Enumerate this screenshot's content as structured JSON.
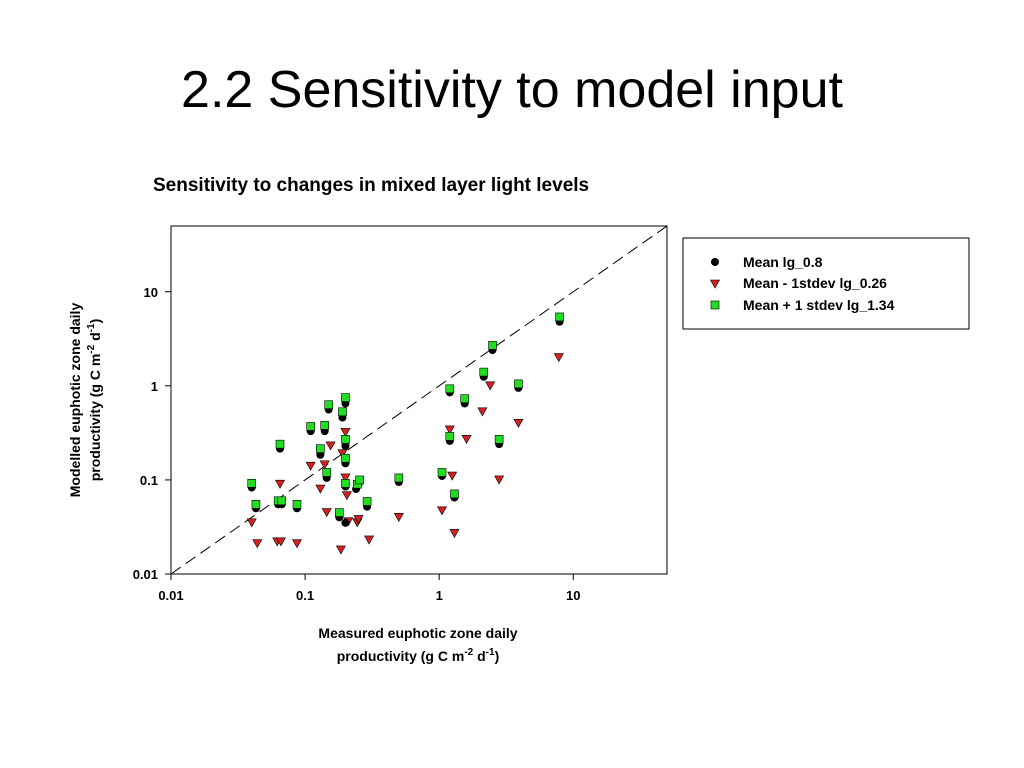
{
  "slide": {
    "title": "2.2 Sensitivity to model input"
  },
  "colors": {
    "series_mean": "#000000",
    "series_minus": "#d62020",
    "series_plus": "#22dd22",
    "axis": "#000000"
  },
  "chart_data": {
    "type": "scatter",
    "title": "Sensitivity to changes in mixed layer light levels",
    "xlabel": {
      "line1": "Measured euphotic zone daily",
      "line2_prefix": "productivity (g C m",
      "sup1": "-2",
      "mid": " d",
      "sup2": "-1",
      "suffix": ")"
    },
    "ylabel": {
      "line1": "Modelled euphotic zone daily",
      "line2_prefix": "productivity (g C m",
      "sup1": "-2",
      "mid": " d",
      "sup2": "-1",
      "suffix": ")"
    },
    "xscale": "log",
    "yscale": "log",
    "xlim": [
      0.01,
      50
    ],
    "ylim": [
      0.01,
      50
    ],
    "xticks": [
      0.01,
      0.1,
      1,
      10
    ],
    "xtick_labels": [
      "0.01",
      "0.1",
      "1",
      "10"
    ],
    "yticks": [
      0.01,
      0.1,
      1,
      10
    ],
    "ytick_labels": [
      "0.01",
      "0.1",
      "1",
      "10"
    ],
    "reference_line": "1:1 dashed",
    "legend_position": "outside-right",
    "series": [
      {
        "name": "Mean lg_0.8",
        "marker": "circle",
        "points": [
          [
            0.04,
            0.083
          ],
          [
            0.043,
            0.05
          ],
          [
            0.063,
            0.055
          ],
          [
            0.067,
            0.055
          ],
          [
            0.065,
            0.215
          ],
          [
            0.087,
            0.05
          ],
          [
            0.11,
            0.33
          ],
          [
            0.13,
            0.185
          ],
          [
            0.14,
            0.33
          ],
          [
            0.145,
            0.105
          ],
          [
            0.15,
            0.56
          ],
          [
            0.18,
            0.04
          ],
          [
            0.19,
            0.46
          ],
          [
            0.2,
            0.23
          ],
          [
            0.2,
            0.65
          ],
          [
            0.2,
            0.15
          ],
          [
            0.2,
            0.085
          ],
          [
            0.2,
            0.035
          ],
          [
            0.24,
            0.08
          ],
          [
            0.25,
            0.09
          ],
          [
            0.29,
            0.052
          ],
          [
            0.5,
            0.095
          ],
          [
            1.05,
            0.11
          ],
          [
            1.2,
            0.85
          ],
          [
            1.2,
            0.26
          ],
          [
            1.3,
            0.065
          ],
          [
            1.55,
            0.65
          ],
          [
            2.15,
            1.25
          ],
          [
            2.5,
            2.4
          ],
          [
            2.8,
            0.24
          ],
          [
            3.9,
            0.95
          ],
          [
            7.9,
            4.8
          ]
        ]
      },
      {
        "name": "Mean - 1stdev lg_0.26",
        "marker": "triangle-down",
        "points": [
          [
            0.04,
            0.035
          ],
          [
            0.044,
            0.021
          ],
          [
            0.062,
            0.022
          ],
          [
            0.066,
            0.022
          ],
          [
            0.065,
            0.09
          ],
          [
            0.087,
            0.021
          ],
          [
            0.11,
            0.14
          ],
          [
            0.13,
            0.08
          ],
          [
            0.14,
            0.145
          ],
          [
            0.145,
            0.045
          ],
          [
            0.155,
            0.23
          ],
          [
            0.185,
            0.018
          ],
          [
            0.19,
            0.19
          ],
          [
            0.2,
            0.105
          ],
          [
            0.2,
            0.32
          ],
          [
            0.205,
            0.068
          ],
          [
            0.21,
            0.036
          ],
          [
            0.245,
            0.035
          ],
          [
            0.25,
            0.038
          ],
          [
            0.3,
            0.023
          ],
          [
            0.5,
            0.04
          ],
          [
            1.05,
            0.047
          ],
          [
            1.2,
            0.34
          ],
          [
            1.25,
            0.11
          ],
          [
            1.3,
            0.027
          ],
          [
            1.6,
            0.27
          ],
          [
            2.1,
            0.53
          ],
          [
            2.4,
            1.0
          ],
          [
            2.8,
            0.1
          ],
          [
            3.9,
            0.4
          ],
          [
            7.8,
            2.0
          ]
        ]
      },
      {
        "name": "Mean + 1 stdev lg_1.34",
        "marker": "square",
        "points": [
          [
            0.04,
            0.092
          ],
          [
            0.043,
            0.055
          ],
          [
            0.063,
            0.06
          ],
          [
            0.067,
            0.06
          ],
          [
            0.065,
            0.24
          ],
          [
            0.087,
            0.055
          ],
          [
            0.11,
            0.37
          ],
          [
            0.13,
            0.215
          ],
          [
            0.14,
            0.38
          ],
          [
            0.145,
            0.12
          ],
          [
            0.15,
            0.63
          ],
          [
            0.18,
            0.045
          ],
          [
            0.19,
            0.53
          ],
          [
            0.2,
            0.27
          ],
          [
            0.2,
            0.75
          ],
          [
            0.2,
            0.17
          ],
          [
            0.2,
            0.092
          ],
          [
            0.245,
            0.09
          ],
          [
            0.255,
            0.1
          ],
          [
            0.29,
            0.059
          ],
          [
            0.5,
            0.105
          ],
          [
            1.05,
            0.12
          ],
          [
            1.2,
            0.93
          ],
          [
            1.2,
            0.29
          ],
          [
            1.3,
            0.071
          ],
          [
            1.55,
            0.73
          ],
          [
            2.15,
            1.4
          ],
          [
            2.5,
            2.7
          ],
          [
            2.8,
            0.27
          ],
          [
            3.9,
            1.05
          ],
          [
            7.9,
            5.4
          ]
        ]
      }
    ]
  }
}
